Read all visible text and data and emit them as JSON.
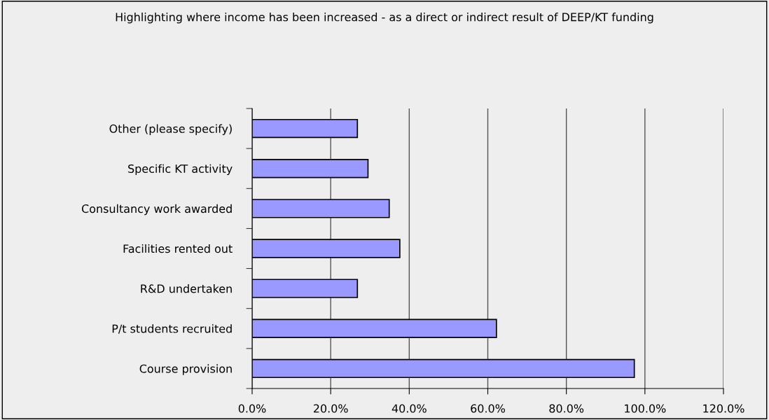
{
  "chart_data": {
    "type": "bar",
    "orientation": "horizontal",
    "title": "Highlighting where income has been increased - as a direct or indirect result of DEEP/KT funding",
    "categories": [
      "Other (please specify)",
      "Specific KT activity",
      "Consultancy work awarded",
      "Facilities rented out",
      "R&D undertaken",
      "P/t students recruited",
      "Course provision"
    ],
    "values": [
      26.8,
      29.5,
      34.9,
      37.6,
      26.8,
      62.2,
      97.3
    ],
    "color": "#9999ff",
    "xlim": [
      0,
      120
    ],
    "xticks": [
      {
        "value": 0,
        "label": "0.0%"
      },
      {
        "value": 20,
        "label": "20.0%"
      },
      {
        "value": 40,
        "label": "40.0%"
      },
      {
        "value": 60,
        "label": "60.0%"
      },
      {
        "value": 80,
        "label": "80.0%"
      },
      {
        "value": 100,
        "label": "100.0%"
      },
      {
        "value": 120,
        "label": "120.0%"
      }
    ],
    "grid": "x",
    "legend": false
  }
}
